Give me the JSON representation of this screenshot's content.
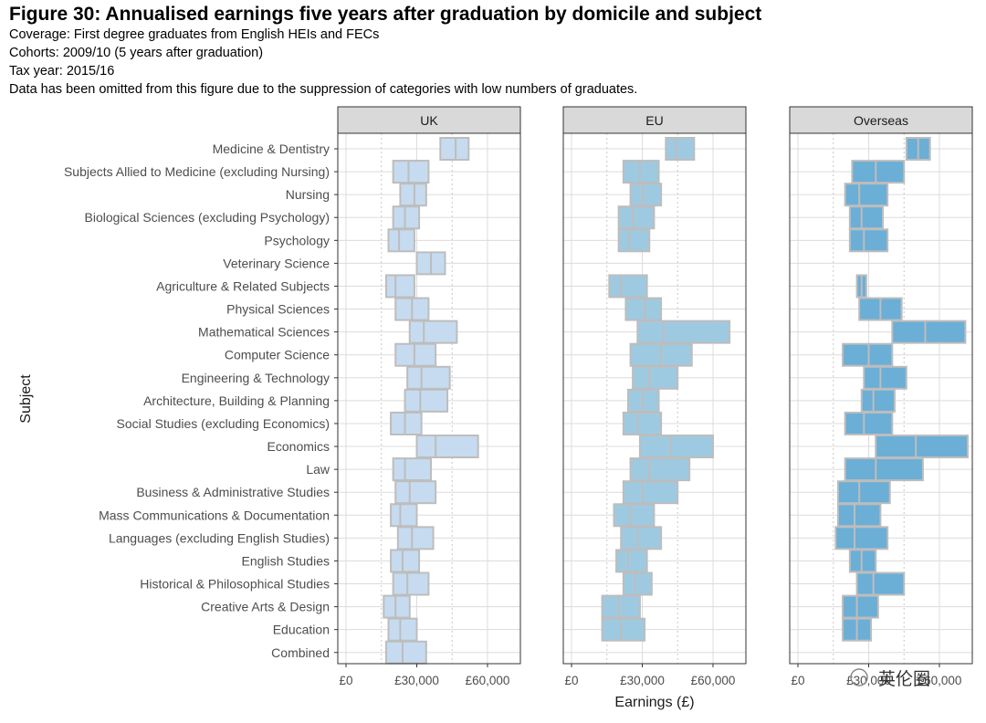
{
  "header": {
    "title": "Figure 30: Annualised earnings five years after graduation by domicile and subject",
    "coverage": "Coverage: First degree graduates from English HEIs and FECs",
    "cohorts": "Cohorts: 2009/10 (5 years after graduation)",
    "tax_year": "Tax year: 2015/16",
    "note": "Data has been omitted from this figure due to the suppression of categories with low numbers of graduates."
  },
  "watermark": {
    "text": "英伦圈"
  },
  "colors": {
    "UK": "#c6dbef",
    "EU": "#9ecae1",
    "Overseas": "#6baed6",
    "box_stroke": "#bdbdbd",
    "strip_fill": "#d9d9d9",
    "panel_border": "#333333"
  },
  "chart_data": {
    "type": "boxplot",
    "title": "Figure 30: Annualised earnings five years after graduation by domicile and subject",
    "xlabel": "Earnings (£)",
    "ylabel": "Subject",
    "xlim": [
      0,
      72000
    ],
    "xticks": [
      0,
      30000,
      60000
    ],
    "xtick_labels": [
      "£0",
      "£30,000",
      "£60,000"
    ],
    "facets": [
      "UK",
      "EU",
      "Overseas"
    ],
    "categories": [
      "Medicine & Dentistry",
      "Subjects Allied to Medicine (excluding Nursing)",
      "Nursing",
      "Biological Sciences (excluding Psychology)",
      "Psychology",
      "Veterinary Science",
      "Agriculture & Related Subjects",
      "Physical Sciences",
      "Mathematical Sciences",
      "Computer Science",
      "Engineering & Technology",
      "Architecture, Building & Planning",
      "Social Studies (excluding Economics)",
      "Economics",
      "Law",
      "Business & Administrative Studies",
      "Mass Communications & Documentation",
      "Languages (excluding English Studies)",
      "English Studies",
      "Historical & Philosophical Studies",
      "Creative Arts & Design",
      "Education",
      "Combined"
    ],
    "series": [
      {
        "name": "UK",
        "boxes": [
          [
            40000,
            46500,
            52000
          ],
          [
            20000,
            26500,
            35000
          ],
          [
            23000,
            29000,
            34000
          ],
          [
            20000,
            25000,
            31000
          ],
          [
            18000,
            22500,
            29000
          ],
          [
            30000,
            36000,
            42000
          ],
          [
            17000,
            21000,
            29000
          ],
          [
            21000,
            28000,
            35000
          ],
          [
            27000,
            33000,
            47000
          ],
          [
            21000,
            29000,
            38000
          ],
          [
            26000,
            32000,
            44000
          ],
          [
            25000,
            31500,
            43000
          ],
          [
            19000,
            25000,
            32000
          ],
          [
            30000,
            38000,
            56000
          ],
          [
            20000,
            25000,
            36000
          ],
          [
            21000,
            27000,
            38000
          ],
          [
            19000,
            23000,
            30000
          ],
          [
            22000,
            28000,
            37000
          ],
          [
            19000,
            24000,
            31000
          ],
          [
            20000,
            26000,
            35000
          ],
          [
            16000,
            21000,
            27000
          ],
          [
            18000,
            23000,
            30000
          ],
          [
            17000,
            24000,
            34000
          ]
        ]
      },
      {
        "name": "EU",
        "boxes": [
          [
            40000,
            44500,
            52000
          ],
          [
            22000,
            29000,
            37000
          ],
          [
            25000,
            30000,
            38000
          ],
          [
            20000,
            26000,
            35000
          ],
          [
            20000,
            24500,
            33000
          ],
          null,
          [
            16000,
            21000,
            32000
          ],
          [
            23000,
            31000,
            38000
          ],
          [
            28000,
            39000,
            67000
          ],
          [
            25000,
            38000,
            51000
          ],
          [
            26000,
            33000,
            45000
          ],
          [
            24000,
            30000,
            37000
          ],
          [
            22000,
            28000,
            38000
          ],
          [
            29000,
            42000,
            60000
          ],
          [
            25000,
            33000,
            50000
          ],
          [
            22000,
            30000,
            45000
          ],
          [
            18000,
            25000,
            35000
          ],
          [
            21000,
            28000,
            38000
          ],
          [
            19000,
            24000,
            32000
          ],
          [
            22000,
            27000,
            34000
          ],
          [
            13000,
            20000,
            29000
          ],
          [
            13000,
            21000,
            31000
          ],
          null
        ]
      },
      {
        "name": "Overseas",
        "boxes": [
          [
            46000,
            51000,
            56000
          ],
          [
            23000,
            33000,
            45000
          ],
          [
            20000,
            26000,
            38000
          ],
          [
            22000,
            27000,
            36000
          ],
          [
            22000,
            28000,
            38000
          ],
          null,
          [
            25000,
            27000,
            29000
          ],
          [
            26000,
            35000,
            44000
          ],
          [
            40000,
            54000,
            71000
          ],
          [
            19000,
            30000,
            40000
          ],
          [
            28000,
            35000,
            46000
          ],
          [
            27000,
            32000,
            41000
          ],
          [
            20000,
            28000,
            40000
          ],
          [
            33000,
            50000,
            72000
          ],
          [
            20000,
            33000,
            53000
          ],
          [
            17000,
            26000,
            39000
          ],
          [
            17000,
            24000,
            35000
          ],
          [
            16000,
            24000,
            38000
          ],
          [
            22000,
            27000,
            33000
          ],
          [
            25000,
            32000,
            45000
          ],
          [
            19000,
            25000,
            34000
          ],
          [
            19000,
            25000,
            31000
          ],
          null
        ]
      }
    ]
  }
}
